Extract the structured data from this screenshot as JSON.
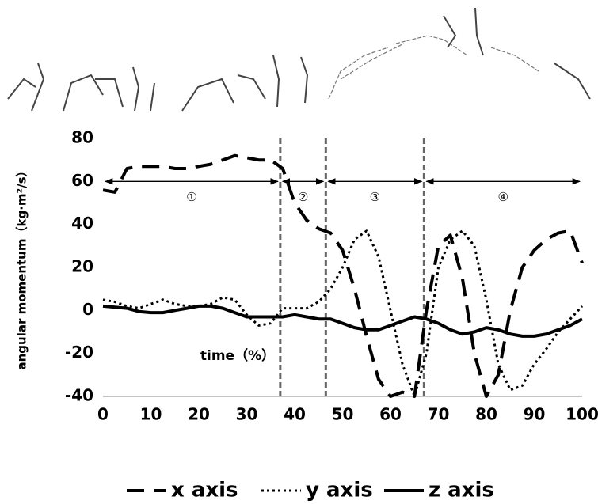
{
  "chart_data": {
    "type": "line",
    "x": [
      0,
      2.5,
      5,
      7.5,
      10,
      12.5,
      15,
      17.5,
      20,
      22.5,
      25,
      27.5,
      30,
      32.5,
      35,
      37.5,
      40,
      42.5,
      45,
      47.5,
      50,
      52.5,
      55,
      57.5,
      60,
      62.5,
      65,
      67.5,
      70,
      72.5,
      75,
      77.5,
      80,
      82.5,
      85,
      87.5,
      90,
      92.5,
      95,
      97.5,
      100
    ],
    "series": [
      {
        "name": "x axis",
        "color": "#000000",
        "dash": "dashed",
        "values": [
          56,
          55,
          66,
          67,
          67,
          67,
          66,
          66,
          67,
          68,
          70,
          72,
          71,
          70,
          70,
          66,
          50,
          42,
          38,
          36,
          28,
          10,
          -12,
          -32,
          -40,
          -38,
          -40,
          0,
          30,
          35,
          15,
          -20,
          -40,
          -30,
          0,
          20,
          28,
          33,
          36,
          37,
          22
        ]
      },
      {
        "name": "y axis",
        "color": "#000000",
        "dash": "dotted",
        "values": [
          5,
          4,
          2,
          1,
          3,
          5,
          3,
          2,
          2,
          3,
          6,
          5,
          -2,
          -7,
          -6,
          1,
          1,
          1,
          4,
          10,
          20,
          33,
          37,
          25,
          0,
          -25,
          -40,
          -20,
          20,
          33,
          37,
          30,
          5,
          -25,
          -37,
          -35,
          -25,
          -18,
          -10,
          -4,
          2
        ]
      },
      {
        "name": "z axis",
        "color": "#000000",
        "dash": "solid",
        "values": [
          2,
          1.5,
          1,
          -0.5,
          -1,
          -1,
          0,
          1,
          2,
          2,
          1,
          -1,
          -3,
          -3,
          -3,
          -3,
          -2,
          -3,
          -4,
          -4,
          -6,
          -8,
          -9,
          -9,
          -7,
          -5,
          -3,
          -4,
          -6,
          -9,
          -11,
          -10,
          -8,
          -9,
          -11,
          -12,
          -12,
          -11,
          -9,
          -7,
          -4
        ]
      }
    ],
    "xlabel": "time（%）",
    "ylabel": "angular momentum（kg·m²/s）",
    "xlim": [
      0,
      100
    ],
    "ylim": [
      -40,
      80
    ],
    "xticks": [
      0,
      10,
      20,
      30,
      40,
      50,
      60,
      70,
      80,
      90,
      100
    ],
    "yticks": [
      -40,
      -20,
      0,
      20,
      40,
      60,
      80
    ],
    "phase_lines": [
      37,
      46.5,
      67
    ],
    "phases": [
      {
        "label": "①",
        "start": 0,
        "end": 37
      },
      {
        "label": "②",
        "start": 37,
        "end": 46.5
      },
      {
        "label": "③",
        "start": 46.5,
        "end": 67
      },
      {
        "label": "④",
        "start": 67,
        "end": 100
      }
    ],
    "phase_arrow_value": 60,
    "legend": "bottom"
  }
}
